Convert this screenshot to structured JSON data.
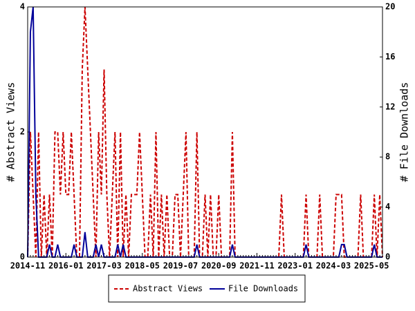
{
  "chart_data": {
    "type": "line",
    "y_label": "# Abstract Views",
    "y2_label": "# File Downloads",
    "categories": [
      "2014-11",
      null,
      null,
      null,
      null,
      null,
      null,
      null,
      null,
      null,
      null,
      null,
      null,
      null,
      "2016-01",
      null,
      null,
      null,
      null,
      null,
      null,
      null,
      null,
      null,
      null,
      null,
      null,
      null,
      "2017-03",
      null,
      null,
      null,
      null,
      null,
      null,
      null,
      null,
      null,
      null,
      null,
      null,
      null,
      "2018-05",
      null,
      null,
      null,
      null,
      null,
      null,
      null,
      null,
      null,
      null,
      null,
      null,
      null,
      "2019-07",
      null,
      null,
      null,
      null,
      null,
      null,
      null,
      null,
      null,
      null,
      null,
      null,
      null,
      "2020-09",
      null,
      null,
      null,
      null,
      null,
      null,
      null,
      null,
      null,
      null,
      null,
      null,
      null,
      "2021-11",
      null,
      null,
      null,
      null,
      null,
      null,
      null,
      null,
      null,
      null,
      null,
      null,
      null,
      "2023-01",
      null,
      null,
      null,
      null,
      null,
      null,
      null,
      null,
      null,
      null,
      null,
      null,
      null,
      "2024-03",
      null,
      null,
      null,
      null,
      null,
      null,
      null,
      null,
      null,
      null,
      null,
      null,
      null,
      "2025-05",
      null,
      null,
      null,
      null
    ],
    "series": [
      {
        "name": "Abstract Views",
        "color": "#cc0000",
        "style": "dashed",
        "axis": "y",
        "values": [
          0,
          2,
          1,
          0,
          2,
          0,
          1,
          0,
          1,
          0,
          2,
          2,
          1,
          2,
          1,
          1,
          2,
          1,
          0,
          0,
          3,
          4,
          3,
          2,
          1,
          0,
          2,
          1,
          3,
          1,
          0,
          1,
          2,
          0,
          2,
          0,
          1,
          0,
          1,
          1,
          1,
          2,
          1,
          0,
          0,
          1,
          0,
          2,
          0,
          1,
          0,
          1,
          0,
          0,
          1,
          1,
          0,
          1,
          2,
          0,
          0,
          0,
          2,
          0,
          0,
          1,
          0,
          1,
          0,
          0,
          1,
          0,
          0,
          0,
          0,
          2,
          0,
          0,
          0,
          0,
          0,
          0,
          0,
          0,
          0,
          0,
          0,
          0,
          0,
          0,
          0,
          0,
          0,
          1,
          0,
          0,
          0,
          0,
          0,
          0,
          0,
          0,
          1,
          0,
          0,
          0,
          0,
          1,
          0,
          0,
          0,
          0,
          0,
          1,
          1,
          1,
          0,
          0,
          0,
          0,
          0,
          0,
          1,
          0,
          0,
          0,
          0,
          1,
          0,
          1,
          0
        ]
      },
      {
        "name": "File Downloads",
        "color": "#000099",
        "style": "solid",
        "axis": "y2",
        "values": [
          0,
          18,
          20,
          5,
          0,
          0,
          0,
          0,
          1,
          0,
          0,
          1,
          0,
          0,
          0,
          0,
          0,
          1,
          0,
          0,
          0,
          2,
          0,
          0,
          0,
          1,
          0,
          1,
          0,
          0,
          0,
          0,
          0,
          1,
          0,
          1,
          0,
          0,
          0,
          0,
          0,
          0,
          0,
          0,
          0,
          0,
          0,
          0,
          0,
          0,
          0,
          0,
          0,
          0,
          0,
          0,
          0,
          0,
          0,
          0,
          0,
          0,
          1,
          0,
          0,
          0,
          0,
          0,
          0,
          0,
          0,
          0,
          0,
          0,
          0,
          1,
          0,
          0,
          0,
          0,
          0,
          0,
          0,
          0,
          0,
          0,
          0,
          0,
          0,
          0,
          0,
          0,
          0,
          0,
          0,
          0,
          0,
          0,
          0,
          0,
          0,
          0,
          1,
          0,
          0,
          0,
          0,
          0,
          0,
          0,
          0,
          0,
          0,
          0,
          0,
          1,
          1,
          0,
          0,
          0,
          0,
          0,
          0,
          0,
          0,
          0,
          0,
          1,
          0,
          0,
          0
        ]
      }
    ],
    "ylim": [
      0,
      4
    ],
    "yticks": [
      0,
      2,
      4
    ],
    "y2lim": [
      0,
      20
    ],
    "y2ticks": [
      0,
      4,
      8,
      12,
      16,
      20
    ],
    "legend": "bottom"
  }
}
